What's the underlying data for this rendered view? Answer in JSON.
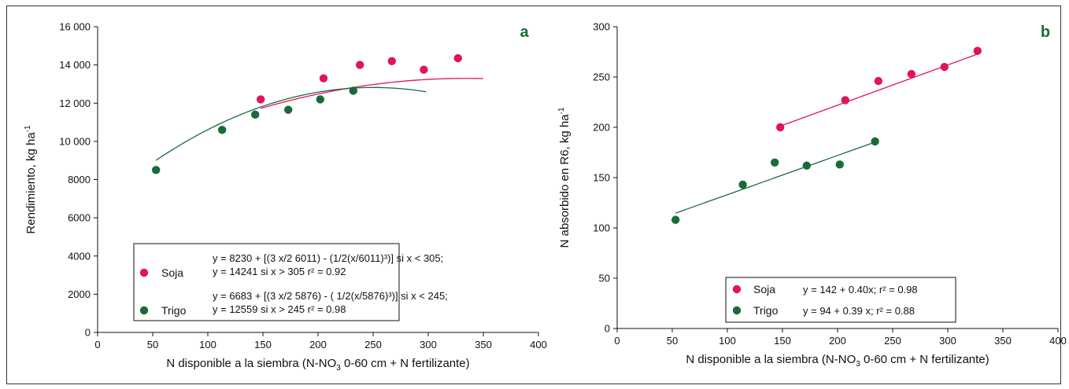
{
  "colors": {
    "soja": "#e0145a",
    "trigo": "#1a6b3a",
    "letter": "#1f6b3a"
  },
  "chart_data": [
    {
      "type": "scatter",
      "panel_letter": "a",
      "xlabel": "N disponible a la siembra (N-NO",
      "xlabel_sub": "3",
      "xlabel_tail": " 0-60 cm + N fertilizante)",
      "ylabel": "Rendimiento, kg ha",
      "ylabel_sup": "-1",
      "xlim": [
        0,
        400
      ],
      "ylim": [
        0,
        16000
      ],
      "xticks": [
        0,
        50,
        100,
        150,
        200,
        250,
        300,
        350,
        400
      ],
      "yticks": [
        0,
        2000,
        4000,
        6000,
        8000,
        10000,
        12000,
        14000,
        16000
      ],
      "ytick_labels": [
        "0",
        "2000",
        "4000",
        "6000",
        "8000",
        "10 000",
        "12 000",
        "14 000",
        "16 000"
      ],
      "series": [
        {
          "name": "Soja",
          "color_key": "soja",
          "points": [
            [
              148,
              12200
            ],
            [
              205,
              13300
            ],
            [
              238,
              14000
            ],
            [
              267,
              14200
            ],
            [
              296,
              13750
            ],
            [
              327,
              14350
            ]
          ],
          "fit": {
            "kind": "quadratic",
            "a": 8230,
            "b": 0.0303,
            "c": -4.53e-05,
            "xmin": 148,
            "xmax": 350
          },
          "legend_lines": [
            "y = 8230 + [(3 x/2 6011) - (1/2(x/6011)³)] si x < 305;",
            "y = 14241 si x > 305 r² = 0.92"
          ]
        },
        {
          "name": "Trigo",
          "color_key": "trigo",
          "points": [
            [
              53,
              8500
            ],
            [
              113,
              10600
            ],
            [
              143,
              11400
            ],
            [
              173,
              11650
            ],
            [
              202,
              12200
            ],
            [
              232,
              12650
            ]
          ],
          "fit": {
            "kind": "quadratic",
            "a": 6683,
            "b": 0.0491,
            "c": -9.82e-05,
            "xmin": 53,
            "xmax": 298
          },
          "legend_lines": [
            "y = 6683 + [(3 x/2 5876) - ( 1/2(x/5876)³)] si x < 245;",
            "y = 12559 si x > 245 r² = 0.98"
          ]
        }
      ]
    },
    {
      "type": "scatter",
      "panel_letter": "b",
      "xlabel": "N disponible a la siembra (N-NO",
      "xlabel_sub": "3",
      "xlabel_tail": " 0-60 cm + N fertilizante)",
      "ylabel": "N absorbido en R6, kg ha",
      "ylabel_sup": "-1",
      "xlim": [
        0,
        400
      ],
      "ylim": [
        0,
        300
      ],
      "xticks": [
        0,
        50,
        100,
        150,
        200,
        250,
        300,
        350,
        400
      ],
      "yticks": [
        0,
        50,
        100,
        150,
        200,
        250,
        300
      ],
      "ytick_labels": [
        "0",
        "50",
        "100",
        "150",
        "200",
        "250",
        "300"
      ],
      "series": [
        {
          "name": "Soja",
          "color_key": "soja",
          "points": [
            [
              148,
              200
            ],
            [
              207,
              227
            ],
            [
              237,
              246
            ],
            [
              267,
              253
            ],
            [
              297,
              260
            ],
            [
              327,
              276
            ]
          ],
          "fit": {
            "kind": "linear",
            "a": 142,
            "b": 0.4,
            "xmin": 148,
            "xmax": 327
          },
          "legend_lines": [
            "y = 142 + 0.40x; r² = 0.98"
          ]
        },
        {
          "name": "Trigo",
          "color_key": "trigo",
          "points": [
            [
              53,
              108
            ],
            [
              114,
              143
            ],
            [
              143,
              165
            ],
            [
              172,
              162
            ],
            [
              202,
              163
            ],
            [
              234,
              186
            ]
          ],
          "fit": {
            "kind": "linear",
            "a": 94,
            "b": 0.39,
            "xmin": 53,
            "xmax": 234
          },
          "legend_lines": [
            "y = 94 + 0.39 x; r² = 0.88"
          ]
        }
      ]
    }
  ]
}
